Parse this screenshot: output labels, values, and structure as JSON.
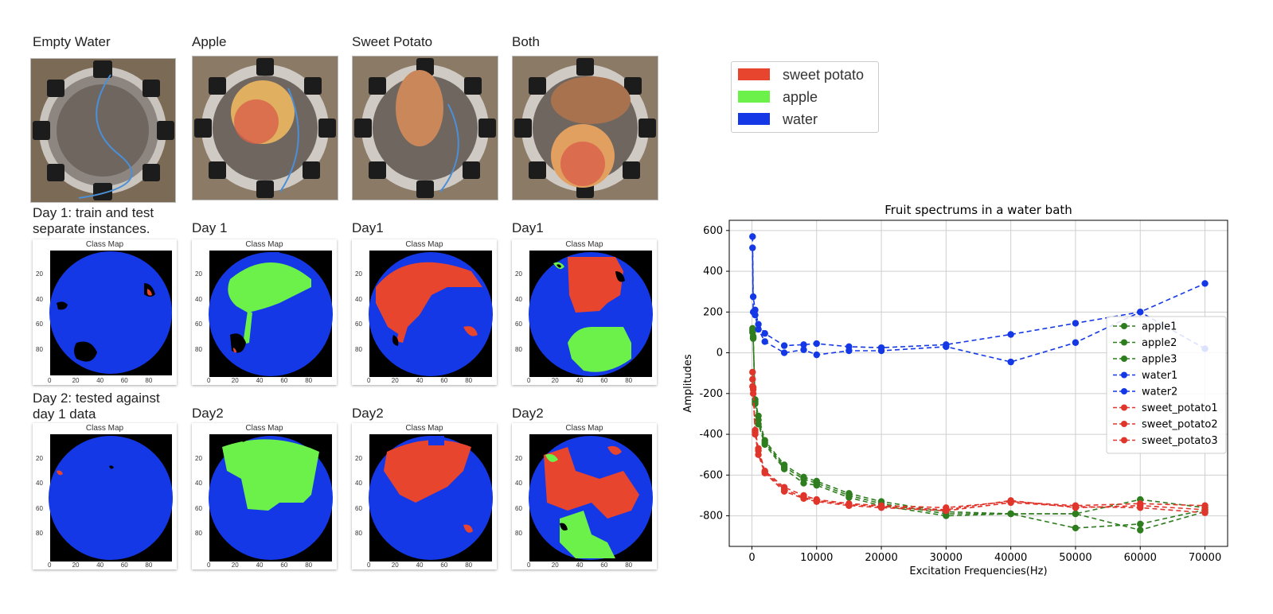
{
  "columns": [
    {
      "header": "Empty Water",
      "day1_label": "Day 1: train and test\nseparate instances.",
      "day2_label": "Day 2: tested against\nday 1 data"
    },
    {
      "header": "Apple",
      "day1_label": "Day 1",
      "day2_label": "Day2"
    },
    {
      "header": "Sweet Potato",
      "day1_label": "Day1",
      "day2_label": "Day2"
    },
    {
      "header": "Both",
      "day1_label": "Day1",
      "day2_label": "Day2"
    }
  ],
  "class_map": {
    "title": "Class Map",
    "y_ticks": [
      "20",
      "40",
      "60",
      "80"
    ],
    "x_ticks": [
      "0",
      "20",
      "40",
      "60",
      "80"
    ]
  },
  "class_legend": [
    {
      "label": "sweet potato",
      "color": "#e8452e"
    },
    {
      "label": "apple",
      "color": "#6cf04a"
    },
    {
      "label": "water",
      "color": "#1438e6"
    }
  ],
  "chart_data": {
    "type": "line",
    "title": "Fruit spectrums in a water bath",
    "xlabel": "Excitation Frequencies(Hz)",
    "ylabel": "Amplitudes",
    "xlim": [
      -3500,
      73500
    ],
    "ylim": [
      -950,
      650
    ],
    "x_ticks": [
      0,
      10000,
      20000,
      30000,
      40000,
      50000,
      60000,
      70000
    ],
    "y_ticks": [
      600,
      400,
      200,
      0,
      -200,
      -400,
      -600,
      -800
    ],
    "grid": true,
    "legend_position": "right",
    "x": [
      100,
      200,
      500,
      1000,
      2000,
      5000,
      8000,
      10000,
      15000,
      20000,
      30000,
      40000,
      50000,
      60000,
      70000
    ],
    "series": [
      {
        "name": "apple1",
        "color": "#2e7d1e",
        "values": [
          120,
          80,
          -230,
          -310,
          -430,
          -550,
          -610,
          -630,
          -690,
          -730,
          -780,
          -790,
          -790,
          -720,
          -760
        ]
      },
      {
        "name": "apple2",
        "color": "#2e7d1e",
        "values": [
          110,
          75,
          -240,
          -330,
          -440,
          -560,
          -620,
          -640,
          -700,
          -740,
          -790,
          -790,
          -860,
          -840,
          -770
        ]
      },
      {
        "name": "apple3",
        "color": "#2e7d1e",
        "values": [
          100,
          70,
          -250,
          -350,
          -450,
          -570,
          -640,
          -650,
          -710,
          -750,
          -800,
          -790,
          -790,
          -870,
          -780
        ]
      },
      {
        "name": "water1",
        "color": "#1438e6",
        "values": [
          570,
          275,
          210,
          140,
          95,
          35,
          40,
          45,
          30,
          25,
          40,
          90,
          145,
          200,
          340
        ]
      },
      {
        "name": "water2",
        "color": "#1438e6",
        "values": [
          515,
          200,
          185,
          115,
          55,
          0,
          15,
          -10,
          10,
          10,
          30,
          -45,
          50,
          200,
          20
        ]
      },
      {
        "name": "sweet_potato1",
        "color": "#e0352b",
        "values": [
          -95,
          -170,
          -380,
          -470,
          -580,
          -660,
          -700,
          -720,
          -740,
          -750,
          -760,
          -730,
          -750,
          -740,
          -750
        ]
      },
      {
        "name": "sweet_potato2",
        "color": "#e0352b",
        "values": [
          -130,
          -180,
          -390,
          -480,
          -585,
          -670,
          -710,
          -725,
          -745,
          -755,
          -770,
          -725,
          -760,
          -750,
          -770
        ]
      },
      {
        "name": "sweet_potato3",
        "color": "#e0352b",
        "values": [
          -165,
          -200,
          -400,
          -500,
          -590,
          -680,
          -715,
          -730,
          -750,
          -760,
          -775,
          -735,
          -755,
          -760,
          -785
        ]
      }
    ]
  }
}
